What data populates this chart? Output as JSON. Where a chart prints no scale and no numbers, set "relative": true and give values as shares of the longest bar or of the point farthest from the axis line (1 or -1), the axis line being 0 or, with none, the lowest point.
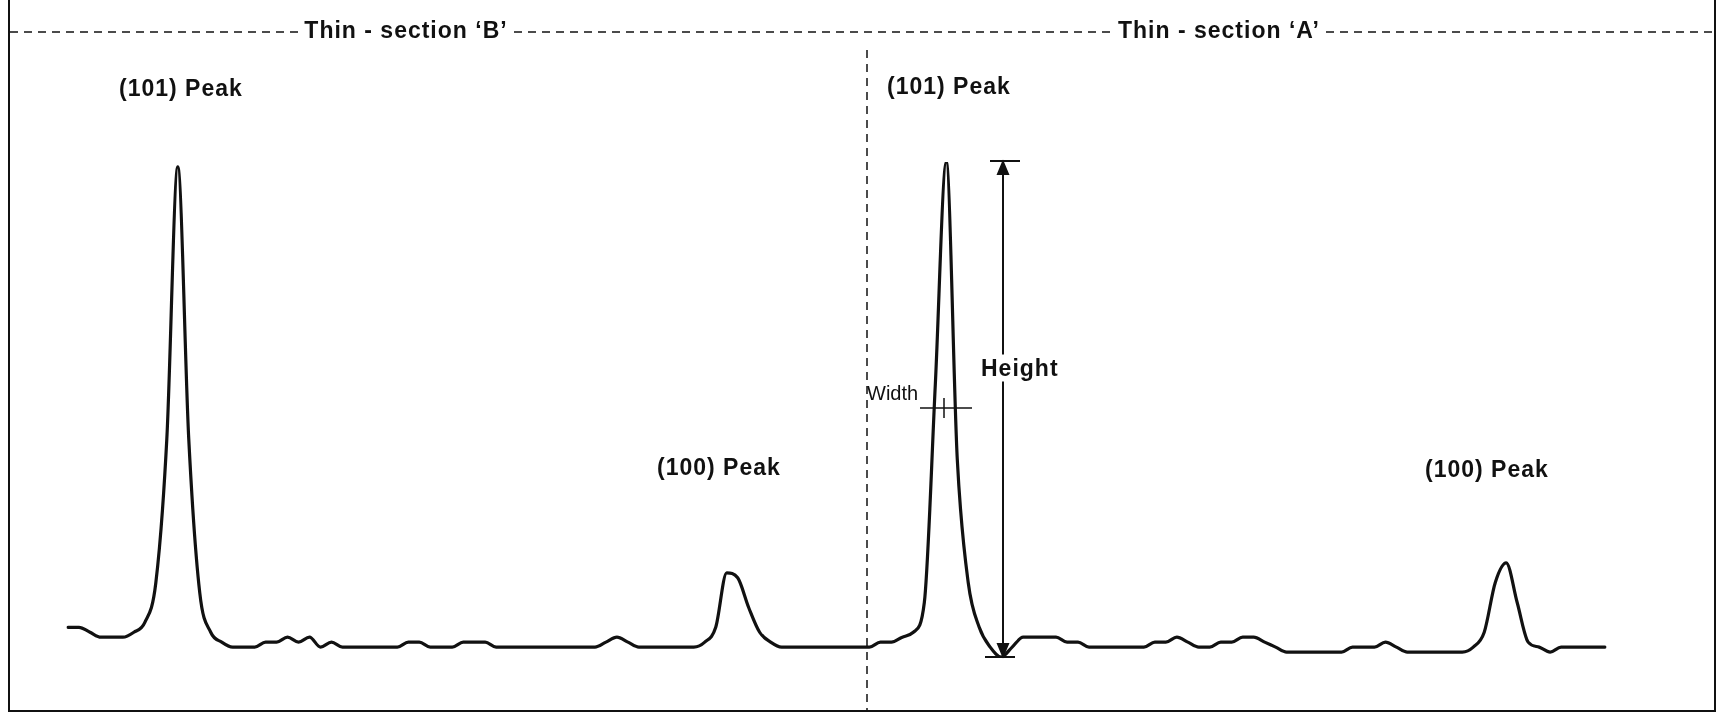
{
  "chart_data": {
    "type": "line",
    "relative": true,
    "marker": "none",
    "line_style": "solid",
    "categories": [
      null,
      null,
      null,
      null,
      null,
      null,
      null,
      null,
      null,
      null,
      null,
      null,
      null,
      null,
      null,
      null,
      null,
      null,
      null,
      null,
      null,
      null,
      null,
      null,
      null,
      null,
      null,
      null,
      null,
      null,
      null,
      null,
      null,
      null,
      null,
      null,
      null,
      null,
      null,
      null,
      null,
      null,
      null,
      null,
      null,
      null,
      null,
      null,
      null,
      null,
      null,
      null,
      null,
      null,
      null,
      null,
      null,
      null,
      null,
      null,
      null,
      null,
      null,
      null,
      null,
      null,
      null,
      null,
      null,
      null,
      null,
      null,
      null,
      null,
      null,
      null,
      null,
      null,
      null,
      null,
      null,
      null,
      null,
      null,
      null,
      null,
      null,
      null,
      null,
      null,
      null,
      null,
      null,
      null,
      null,
      null,
      null,
      null,
      null,
      null,
      null,
      null,
      null,
      null,
      null,
      null,
      null,
      null,
      null,
      null,
      null,
      null,
      null,
      null,
      null,
      null,
      null,
      null,
      null,
      null,
      null,
      null,
      null,
      null,
      null,
      null,
      null,
      null,
      null,
      null,
      null,
      null,
      null,
      null,
      null,
      null,
      null,
      null,
      null,
      null,
      null
    ],
    "series": [
      {
        "color": "#111111",
        "values": [
          0.06,
          0.06,
          0.05,
          0.04,
          0.04,
          0.04,
          0.05,
          0.07,
          0.15,
          0.44,
          0.99,
          0.44,
          0.13,
          0.05,
          0.03,
          0.02,
          0.02,
          0.02,
          0.03,
          0.03,
          0.04,
          0.03,
          0.04,
          0.02,
          0.03,
          0.02,
          0.02,
          0.02,
          0.02,
          0.02,
          0.02,
          0.03,
          0.03,
          0.02,
          0.02,
          0.02,
          0.03,
          0.03,
          0.03,
          0.02,
          0.02,
          0.02,
          0.02,
          0.02,
          0.02,
          0.02,
          0.02,
          0.02,
          0.02,
          0.03,
          0.04,
          0.03,
          0.02,
          0.02,
          0.02,
          0.02,
          0.02,
          0.02,
          0.03,
          0.06,
          0.17,
          0.16,
          0.1,
          0.05,
          0.03,
          0.02,
          0.02,
          0.02,
          0.02,
          0.02,
          0.02,
          0.02,
          0.02,
          0.02,
          0.03,
          0.03,
          0.04,
          0.05,
          0.11,
          0.55,
          1,
          0.4,
          0.15,
          0.06,
          0.02,
          0,
          0.02,
          0.04,
          0.04,
          0.04,
          0.04,
          0.03,
          0.03,
          0.02,
          0.02,
          0.02,
          0.02,
          0.02,
          0.02,
          0.03,
          0.03,
          0.04,
          0.03,
          0.02,
          0.02,
          0.03,
          0.03,
          0.04,
          0.04,
          0.03,
          0.02,
          0.01,
          0.01,
          0.01,
          0.01,
          0.01,
          0.01,
          0.02,
          0.02,
          0.02,
          0.03,
          0.02,
          0.01,
          0.01,
          0.01,
          0.01,
          0.01,
          0.01,
          0.02,
          0.05,
          0.15,
          0.19,
          0.11,
          0.03,
          0.02,
          0.01,
          0.02,
          0.02,
          0.02,
          0.02,
          0.02
        ]
      }
    ],
    "annotations": [
      "Thin - section ‘B’",
      "Thin - section ‘A’",
      "(101) Peak",
      "(101) Peak",
      "(100) Peak",
      "(100) Peak",
      "Width",
      "Height"
    ]
  }
}
